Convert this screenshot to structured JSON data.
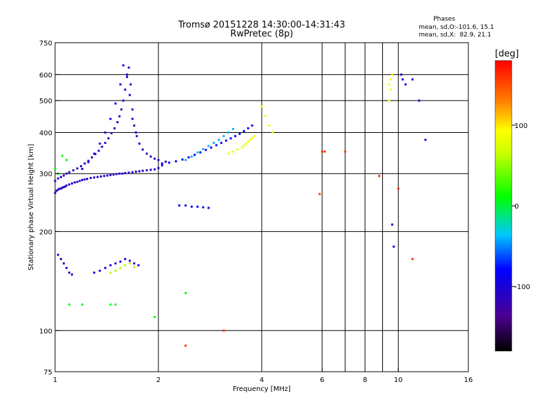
{
  "chart_data": {
    "type": "scatter",
    "title": "Tromsø 20151228 14:30:00-14:31:43",
    "subtitle": "RwPretec (8p)",
    "xlabel": "Frequency [MHz]",
    "ylabel": "Stationary phase Virtual Height [km]",
    "xscale": "log",
    "yscale": "log",
    "xlim": [
      1,
      16
    ],
    "ylim": [
      75,
      750
    ],
    "x_ticks": [
      1,
      2,
      4,
      6,
      8,
      10,
      16
    ],
    "x_tick_labels": [
      "1",
      "2",
      "4",
      "6",
      "8",
      "10",
      "16"
    ],
    "x_grid": [
      2,
      4,
      6,
      7,
      8,
      9,
      10
    ],
    "y_ticks": [
      75,
      100,
      200,
      300,
      400,
      500,
      600,
      750
    ],
    "y_tick_labels": [
      "75",
      "100",
      "200",
      "300",
      "400",
      "500",
      "600",
      "750"
    ],
    "y_grid": [
      100,
      200,
      300,
      400,
      500,
      600
    ],
    "grid": true,
    "phases_info": {
      "title": "Phases",
      "line_o": "mean, sd,O:-101.6, 15.1",
      "line_x": "mean, sd,X:  82.9, 21.1"
    },
    "colorbar": {
      "label": "[deg]",
      "range": [
        -180,
        180
      ],
      "ticks": [
        100,
        0,
        -100
      ],
      "tick_labels": [
        "100",
        "0",
        "-100"
      ],
      "colors": [
        "#000000",
        "#6a00a8",
        "#0000ff",
        "#00ffff",
        "#00ff00",
        "#ffff00",
        "#ff8000",
        "#ff0000"
      ]
    },
    "series": [
      {
        "phase": -105,
        "x": [
          1.0,
          1.01,
          1.02,
          1.03,
          1.04,
          1.05,
          1.06,
          1.07,
          1.08,
          1.1,
          1.12,
          1.14,
          1.16,
          1.18,
          1.2,
          1.22,
          1.24,
          1.27,
          1.3,
          1.33,
          1.36,
          1.39,
          1.42,
          1.45,
          1.48,
          1.51,
          1.54,
          1.57,
          1.6,
          1.64,
          1.68,
          1.72,
          1.76,
          1.8,
          1.85,
          1.9,
          1.95,
          2.0,
          2.05,
          2.1
        ],
        "y": [
          262,
          266,
          268,
          270,
          270,
          272,
          273,
          274,
          276,
          278,
          280,
          282,
          283,
          285,
          287,
          288,
          289,
          291,
          292,
          293,
          294,
          295,
          296,
          297,
          298,
          299,
          300,
          300,
          301,
          302,
          303,
          304,
          305,
          306,
          307,
          308,
          309,
          312,
          318,
          326
        ]
      },
      {
        "phase": -110,
        "x": [
          1.0,
          1.02,
          1.04,
          1.06,
          1.08,
          1.1,
          1.13,
          1.16,
          1.19,
          1.22,
          1.25,
          1.28,
          1.31,
          1.34,
          1.37,
          1.4,
          1.43,
          1.46,
          1.49,
          1.52,
          1.54,
          1.56,
          1.58,
          1.6,
          1.62,
          1.64,
          1.66,
          1.68,
          1.7,
          1.73,
          1.76,
          1.8,
          1.85,
          1.9,
          1.95,
          2.0
        ],
        "y": [
          285,
          290,
          293,
          296,
          300,
          303,
          307,
          311,
          316,
          322,
          328,
          336,
          344,
          352,
          362,
          372,
          384,
          398,
          412,
          430,
          448,
          470,
          500,
          540,
          590,
          630,
          560,
          470,
          420,
          390,
          370,
          355,
          345,
          338,
          333,
          330
        ]
      },
      {
        "phase": -95,
        "x": [
          1.2,
          1.25,
          1.3,
          1.35,
          1.4,
          1.45,
          1.5,
          1.55,
          1.58,
          1.62,
          1.65,
          1.68,
          1.72
        ],
        "y": [
          310,
          325,
          345,
          370,
          400,
          440,
          490,
          560,
          640,
          600,
          520,
          440,
          400
        ]
      },
      {
        "phase": -85,
        "x": [
          2.05,
          2.15,
          2.25,
          2.35,
          2.45,
          2.55,
          2.65,
          2.75,
          2.85,
          2.95,
          3.05,
          3.15,
          3.25,
          3.35,
          3.45,
          3.55,
          3.65,
          3.75
        ],
        "y": [
          322,
          324,
          327,
          331,
          336,
          342,
          348,
          354,
          360,
          366,
          372,
          378,
          384,
          390,
          396,
          404,
          412,
          420
        ]
      },
      {
        "phase": -40,
        "x": [
          2.4,
          2.5,
          2.6,
          2.7,
          2.8,
          2.9,
          3.0,
          3.1,
          3.2,
          3.3
        ],
        "y": [
          330,
          338,
          348,
          356,
          364,
          372,
          380,
          390,
          400,
          410
        ]
      },
      {
        "phase": 85,
        "x": [
          3.2,
          3.3,
          3.4,
          3.5,
          3.55,
          3.6,
          3.65,
          3.7,
          3.75,
          3.8
        ],
        "y": [
          345,
          350,
          355,
          360,
          365,
          370,
          375,
          380,
          385,
          390
        ]
      },
      {
        "phase": -100,
        "x": [
          1.02,
          1.04,
          1.06,
          1.08,
          1.1,
          1.12,
          1.3,
          1.35,
          1.4,
          1.45,
          1.5,
          1.55,
          1.6,
          1.65,
          1.7,
          1.75
        ],
        "y": [
          170,
          165,
          160,
          155,
          150,
          148,
          150,
          152,
          155,
          158,
          160,
          162,
          165,
          163,
          160,
          158
        ]
      },
      {
        "phase": 60,
        "x": [
          1.45,
          1.5,
          1.55,
          1.6,
          1.65,
          1.7
        ],
        "y": [
          150,
          152,
          155,
          158,
          160,
          156
        ]
      },
      {
        "phase": -90,
        "x": [
          2.3,
          2.4,
          2.5,
          2.6,
          2.7,
          2.8
        ],
        "y": [
          240,
          240,
          238,
          238,
          237,
          236
        ]
      },
      {
        "phase": 90,
        "x": [
          4.0,
          4.1,
          4.2,
          4.3,
          9.4,
          9.5,
          9.6,
          9.5,
          9.4
        ],
        "y": [
          480,
          450,
          420,
          400,
          560,
          580,
          600,
          540,
          500
        ]
      },
      {
        "phase": -100,
        "x": [
          10.2,
          10.3,
          10.5,
          11.0,
          11.5,
          12.0,
          9.6,
          9.7
        ],
        "y": [
          600,
          580,
          560,
          580,
          500,
          380,
          210,
          180
        ]
      },
      {
        "phase": 160,
        "x": [
          6.0,
          6.1,
          7.0,
          8.8,
          10.0,
          11.0,
          5.9,
          2.4,
          3.1
        ],
        "y": [
          350,
          350,
          350,
          295,
          270,
          165,
          260,
          90,
          100
        ]
      },
      {
        "phase": 10,
        "x": [
          1.0,
          1.02,
          1.05,
          1.08,
          1.1,
          1.2,
          1.45,
          1.5,
          1.95,
          2.4
        ],
        "y": [
          310,
          300,
          340,
          330,
          120,
          120,
          120,
          120,
          110,
          130
        ]
      }
    ]
  }
}
